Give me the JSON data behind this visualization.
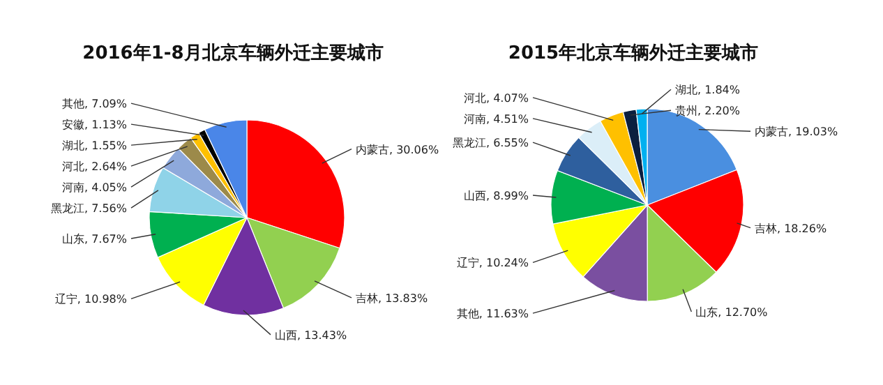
{
  "chart_data": [
    {
      "type": "pie",
      "title": "2016年1-8月北京车辆外迁主要城市",
      "categories": [
        "内蒙古",
        "吉林",
        "山西",
        "辽宁",
        "山东",
        "黑龙江",
        "河南",
        "河北",
        "湖北",
        "安徽",
        "其他"
      ],
      "values": [
        30.06,
        13.83,
        13.43,
        10.98,
        7.67,
        7.56,
        4.05,
        2.64,
        1.55,
        1.13,
        7.09
      ],
      "value_labels": [
        "30.06%",
        "13.83%",
        "13.43%",
        "10.98%",
        "7.67%",
        "7.56%",
        "4.05%",
        "2.64%",
        "1.55%",
        "1.13%",
        "7.09%"
      ],
      "colors": [
        "#ff0000",
        "#92d050",
        "#7030a0",
        "#ffff00",
        "#00b050",
        "#8fd3e8",
        "#8ea9db",
        "#9c8a4a",
        "#ffc000",
        "#000000",
        "#4a86e8"
      ]
    },
    {
      "type": "pie",
      "title": "2015年北京车辆外迁主要城市",
      "categories": [
        "内蒙古",
        "吉林",
        "山东",
        "其他",
        "辽宁",
        "山西",
        "黑龙江",
        "河南",
        "河北",
        "贵州",
        "湖北"
      ],
      "values": [
        19.03,
        18.26,
        12.7,
        11.63,
        10.24,
        8.99,
        6.55,
        4.51,
        4.07,
        2.2,
        1.84
      ],
      "value_labels": [
        "19.03%",
        "18.26%",
        "12.70%",
        "11.63%",
        "10.24%",
        "8.99%",
        "6.55%",
        "4.51%",
        "4.07%",
        "2.20%",
        "1.84%"
      ],
      "colors": [
        "#4a8fe0",
        "#ff0000",
        "#92d050",
        "#7a4fa0",
        "#ffff00",
        "#00b050",
        "#2e5f9e",
        "#dbeef8",
        "#ffc000",
        "#0b1f3f",
        "#00b0f0"
      ]
    }
  ]
}
